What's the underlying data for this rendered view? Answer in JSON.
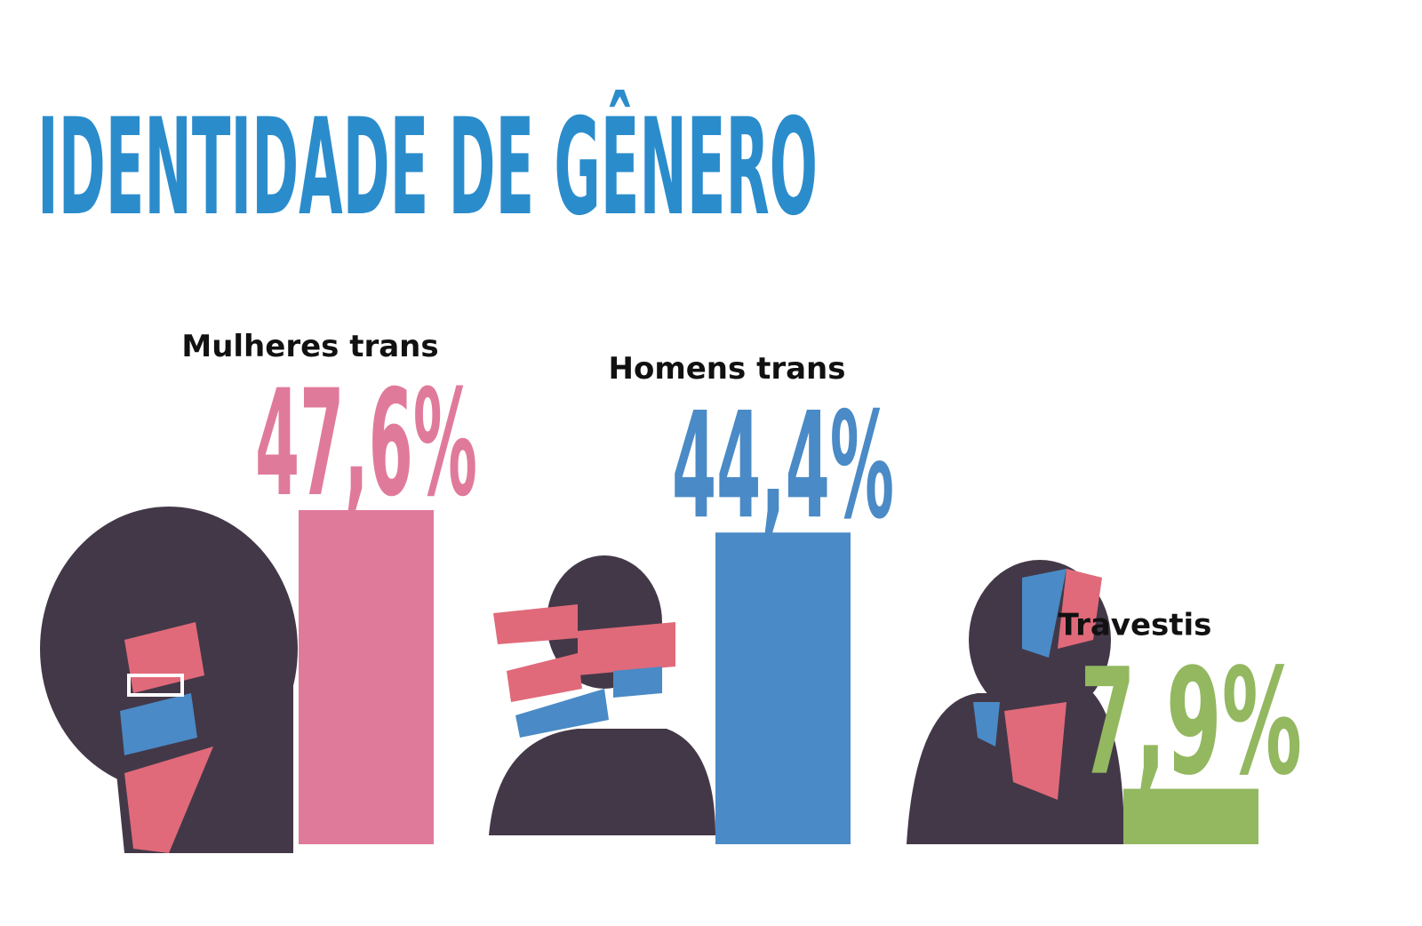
{
  "chart_data": {
    "type": "bar",
    "title": "IDENTIDADE DE GÊNERO",
    "categories": [
      "Mulheres trans",
      "Homens trans",
      "Travestis"
    ],
    "values": [
      47.6,
      44.4,
      7.9
    ],
    "value_labels": [
      "47,6%",
      "44,4%",
      "7,9%"
    ],
    "colors": [
      "#e07a9b",
      "#4a8ac6",
      "#93b860"
    ]
  }
}
